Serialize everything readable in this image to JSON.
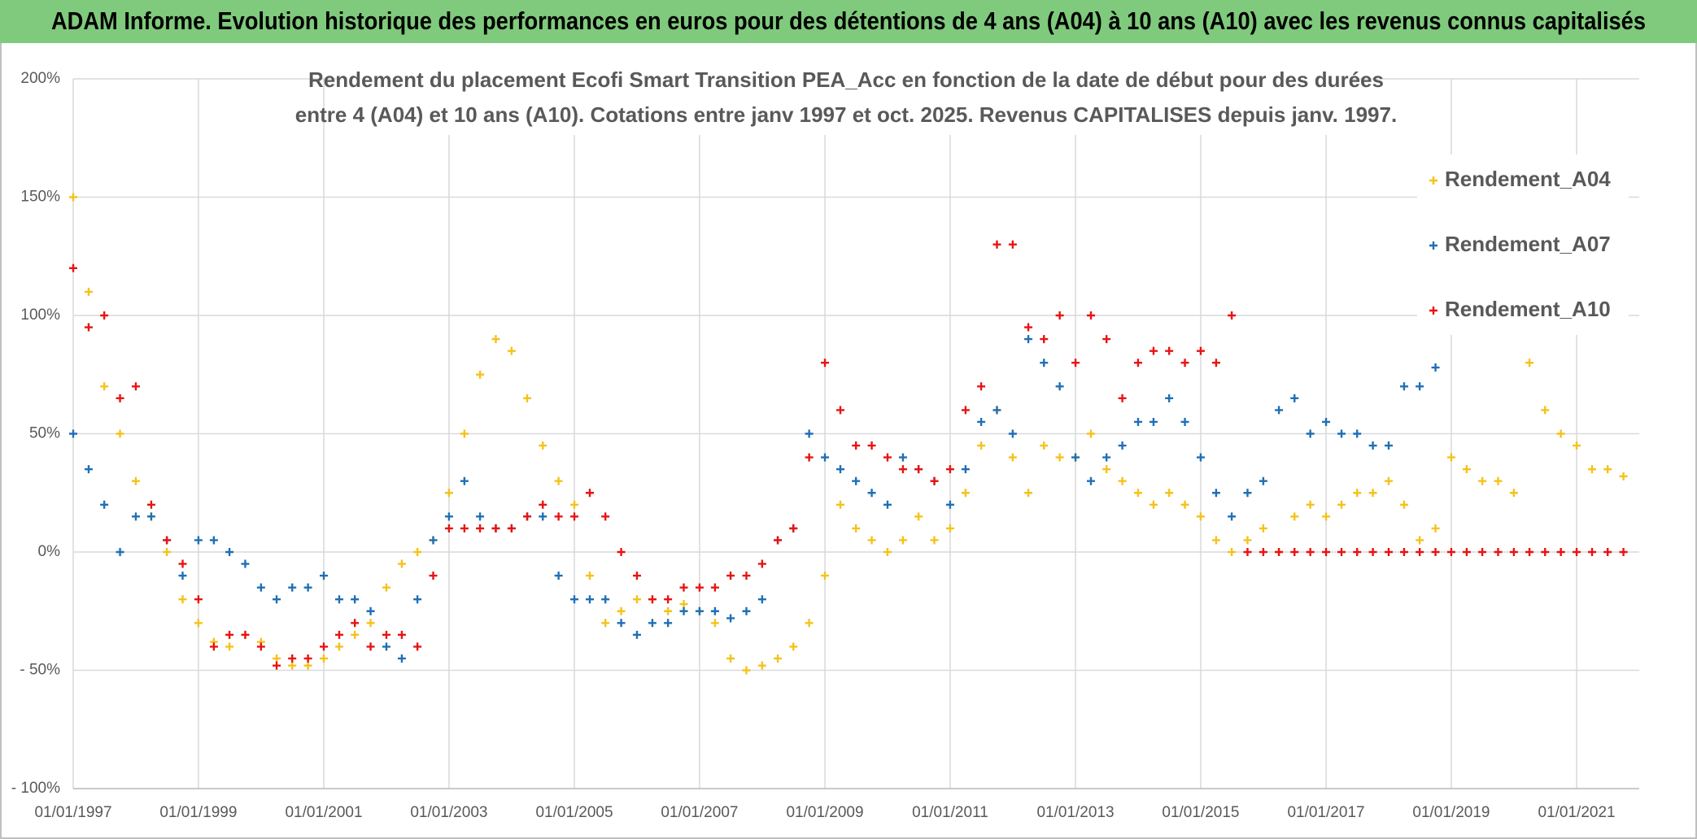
{
  "header": {
    "title": "ADAM Informe. Evolution historique des performances en euros pour des détentions de 4 ans (A04) à 10 ans (A10) avec les revenus connus capitalisés"
  },
  "chart_data": {
    "type": "scatter",
    "title": "Rendement du placement Ecofi Smart Transition PEA_Acc en fonction de la date de début pour des durées",
    "subtitle": "entre 4 (A04) et 10 ans (A10). Cotations entre janv 1997 et oct. 2025. Revenus CAPITALISES depuis janv. 1997.",
    "xlim": [
      "1997-01-01",
      "2022-01-01"
    ],
    "xticks": [
      {
        "value": "1997-01-01",
        "label": "01/01/1997"
      },
      {
        "value": "1999-01-01",
        "label": "01/01/1999"
      },
      {
        "value": "2001-01-01",
        "label": "01/01/2001"
      },
      {
        "value": "2003-01-01",
        "label": "01/01/2003"
      },
      {
        "value": "2005-01-01",
        "label": "01/01/2005"
      },
      {
        "value": "2007-01-01",
        "label": "01/01/2007"
      },
      {
        "value": "2009-01-01",
        "label": "01/01/2009"
      },
      {
        "value": "2011-01-01",
        "label": "01/01/2011"
      },
      {
        "value": "2013-01-01",
        "label": "01/01/2013"
      },
      {
        "value": "2015-01-01",
        "label": "01/01/2015"
      },
      {
        "value": "2017-01-01",
        "label": "01/01/2017"
      },
      {
        "value": "2019-01-01",
        "label": "01/01/2019"
      },
      {
        "value": "2021-01-01",
        "label": "01/01/2021"
      }
    ],
    "ylim": [
      -100,
      200
    ],
    "yticks": [
      {
        "value": -100,
        "label": "- 100%"
      },
      {
        "value": -50,
        "label": "- 50%"
      },
      {
        "value": 0,
        "label": "0%"
      },
      {
        "value": 50,
        "label": "50%"
      },
      {
        "value": 100,
        "label": "100%"
      },
      {
        "value": 150,
        "label": "150%"
      },
      {
        "value": 200,
        "label": "200%"
      }
    ],
    "grid": true,
    "legend": "right",
    "x": [
      "1997-01-01",
      "1997-04-01",
      "1997-07-01",
      "1997-10-01",
      "1998-01-01",
      "1998-04-01",
      "1998-07-01",
      "1998-10-01",
      "1999-01-01",
      "1999-04-01",
      "1999-07-01",
      "1999-10-01",
      "2000-01-01",
      "2000-04-01",
      "2000-07-01",
      "2000-10-01",
      "2001-01-01",
      "2001-04-01",
      "2001-07-01",
      "2001-10-01",
      "2002-01-01",
      "2002-04-01",
      "2002-07-01",
      "2002-10-01",
      "2003-01-01",
      "2003-04-01",
      "2003-07-01",
      "2003-10-01",
      "2004-01-01",
      "2004-04-01",
      "2004-07-01",
      "2004-10-01",
      "2005-01-01",
      "2005-04-01",
      "2005-07-01",
      "2005-10-01",
      "2006-01-01",
      "2006-04-01",
      "2006-07-01",
      "2006-10-01",
      "2007-01-01",
      "2007-04-01",
      "2007-07-01",
      "2007-10-01",
      "2008-01-01",
      "2008-04-01",
      "2008-07-01",
      "2008-10-01",
      "2009-01-01",
      "2009-04-01",
      "2009-07-01",
      "2009-10-01",
      "2010-01-01",
      "2010-04-01",
      "2010-07-01",
      "2010-10-01",
      "2011-01-01",
      "2011-04-01",
      "2011-07-01",
      "2011-10-01",
      "2012-01-01",
      "2012-04-01",
      "2012-07-01",
      "2012-10-01",
      "2013-01-01",
      "2013-04-01",
      "2013-07-01",
      "2013-10-01",
      "2014-01-01",
      "2014-04-01",
      "2014-07-01",
      "2014-10-01",
      "2015-01-01",
      "2015-04-01",
      "2015-07-01",
      "2015-10-01",
      "2016-01-01",
      "2016-04-01",
      "2016-07-01",
      "2016-10-01",
      "2017-01-01",
      "2017-04-01",
      "2017-07-01",
      "2017-10-01",
      "2018-01-01",
      "2018-04-01",
      "2018-07-01",
      "2018-10-01",
      "2019-01-01",
      "2019-04-01",
      "2019-07-01",
      "2019-10-01",
      "2020-01-01",
      "2020-04-01",
      "2020-07-01",
      "2020-10-01",
      "2021-01-01",
      "2021-04-01",
      "2021-07-01",
      "2021-10-01"
    ],
    "series": [
      {
        "name": "Rendement_A04",
        "color": "#f5c21b",
        "values": [
          150,
          110,
          70,
          50,
          30,
          15,
          0,
          -20,
          -30,
          -38,
          -40,
          -35,
          -38,
          -45,
          -48,
          -48,
          -45,
          -40,
          -35,
          -30,
          -15,
          -5,
          0,
          5,
          25,
          50,
          75,
          90,
          85,
          65,
          45,
          30,
          20,
          -10,
          -30,
          -25,
          -20,
          -20,
          -25,
          -22,
          -25,
          -30,
          -45,
          -50,
          -48,
          -45,
          -40,
          -30,
          -10,
          20,
          10,
          5,
          0,
          5,
          15,
          5,
          10,
          25,
          45,
          60,
          40,
          25,
          45,
          40,
          40,
          50,
          35,
          30,
          25,
          20,
          25,
          20,
          15,
          5,
          0,
          5,
          10,
          0,
          15,
          20,
          15,
          20,
          25,
          25,
          30,
          20,
          5,
          10,
          40,
          35,
          30,
          30,
          25,
          80,
          60,
          50,
          45,
          35,
          35,
          32
        ]
      },
      {
        "name": "Rendement_A07",
        "color": "#1f6fb5",
        "values": [
          50,
          35,
          20,
          0,
          15,
          15,
          5,
          -10,
          5,
          5,
          0,
          -5,
          -15,
          -20,
          -15,
          -15,
          -10,
          -20,
          -20,
          -25,
          -40,
          -45,
          -20,
          5,
          15,
          30,
          15,
          10,
          10,
          15,
          15,
          -10,
          -20,
          -20,
          -20,
          -30,
          -35,
          -30,
          -30,
          -25,
          -25,
          -25,
          -28,
          -25,
          -20,
          5,
          10,
          50,
          40,
          35,
          30,
          25,
          20,
          40,
          35,
          30,
          20,
          35,
          55,
          60,
          50,
          90,
          80,
          70,
          40,
          30,
          40,
          45,
          55,
          55,
          65,
          55,
          40,
          25,
          15,
          25,
          30,
          60,
          65,
          50,
          55,
          50,
          50,
          45,
          45,
          70,
          70,
          78,
          null,
          null,
          null,
          null,
          null,
          null,
          null,
          null,
          null,
          null,
          null,
          null
        ]
      },
      {
        "name": "Rendement_A10",
        "color": "#e81313",
        "values": [
          120,
          95,
          100,
          65,
          70,
          20,
          5,
          -5,
          -20,
          -40,
          -35,
          -35,
          -40,
          -48,
          -45,
          -45,
          -40,
          -35,
          -30,
          -40,
          -35,
          -35,
          -40,
          -10,
          10,
          10,
          10,
          10,
          10,
          15,
          20,
          15,
          15,
          25,
          15,
          0,
          -10,
          -20,
          -20,
          -15,
          -15,
          -15,
          -10,
          -10,
          -5,
          5,
          10,
          40,
          80,
          60,
          45,
          45,
          40,
          35,
          35,
          30,
          35,
          60,
          70,
          130,
          130,
          95,
          90,
          100,
          80,
          100,
          90,
          65,
          80,
          85,
          85,
          80,
          85,
          80,
          100,
          0,
          0,
          0,
          0,
          0,
          0,
          0,
          0,
          0,
          0,
          0,
          0,
          0,
          0,
          0,
          0,
          0,
          0,
          0,
          0,
          0,
          0,
          0,
          0,
          0
        ]
      }
    ]
  }
}
